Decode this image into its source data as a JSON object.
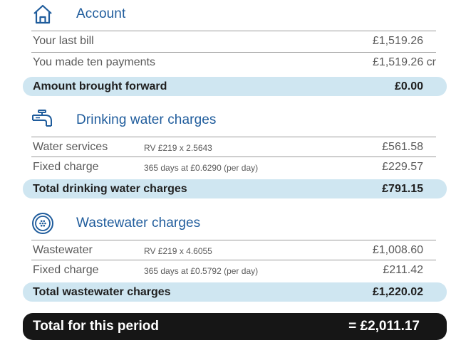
{
  "account": {
    "title": "Account",
    "icon": "house-icon",
    "rows": [
      {
        "label": "Your last bill",
        "amount": "£1,519.26",
        "suffix": ""
      },
      {
        "label": "You made ten payments",
        "amount": "£1,519.26",
        "suffix": "cr"
      }
    ],
    "total": {
      "label": "Amount brought forward",
      "amount": "£0.00"
    }
  },
  "drinking": {
    "title": "Drinking water charges",
    "icon": "tap-icon",
    "rows": [
      {
        "label": "Water services",
        "calc": "RV £219 x 2.5643",
        "amount": "£561.58"
      },
      {
        "label": "Fixed charge",
        "calc": "365 days at £0.6290 (per day)",
        "amount": "£229.57"
      }
    ],
    "total": {
      "label": "Total drinking water charges",
      "amount": "£791.15"
    }
  },
  "wastewater": {
    "title": "Wastewater charges",
    "icon": "drain-icon",
    "rows": [
      {
        "label": "Wastewater",
        "calc": "RV £219 x 4.6055",
        "amount": "£1,008.60"
      },
      {
        "label": "Fixed charge",
        "calc": "365 days at £0.5792 (per day)",
        "amount": "£211.42"
      }
    ],
    "total": {
      "label": "Total wastewater charges",
      "amount": "£1,220.02"
    }
  },
  "grand_total": {
    "label": "Total for this period",
    "amount": "= £2,011.17"
  },
  "colors": {
    "accent": "#1f5c9c",
    "total_band": "#cfe6f1",
    "grand_band": "#161616"
  }
}
